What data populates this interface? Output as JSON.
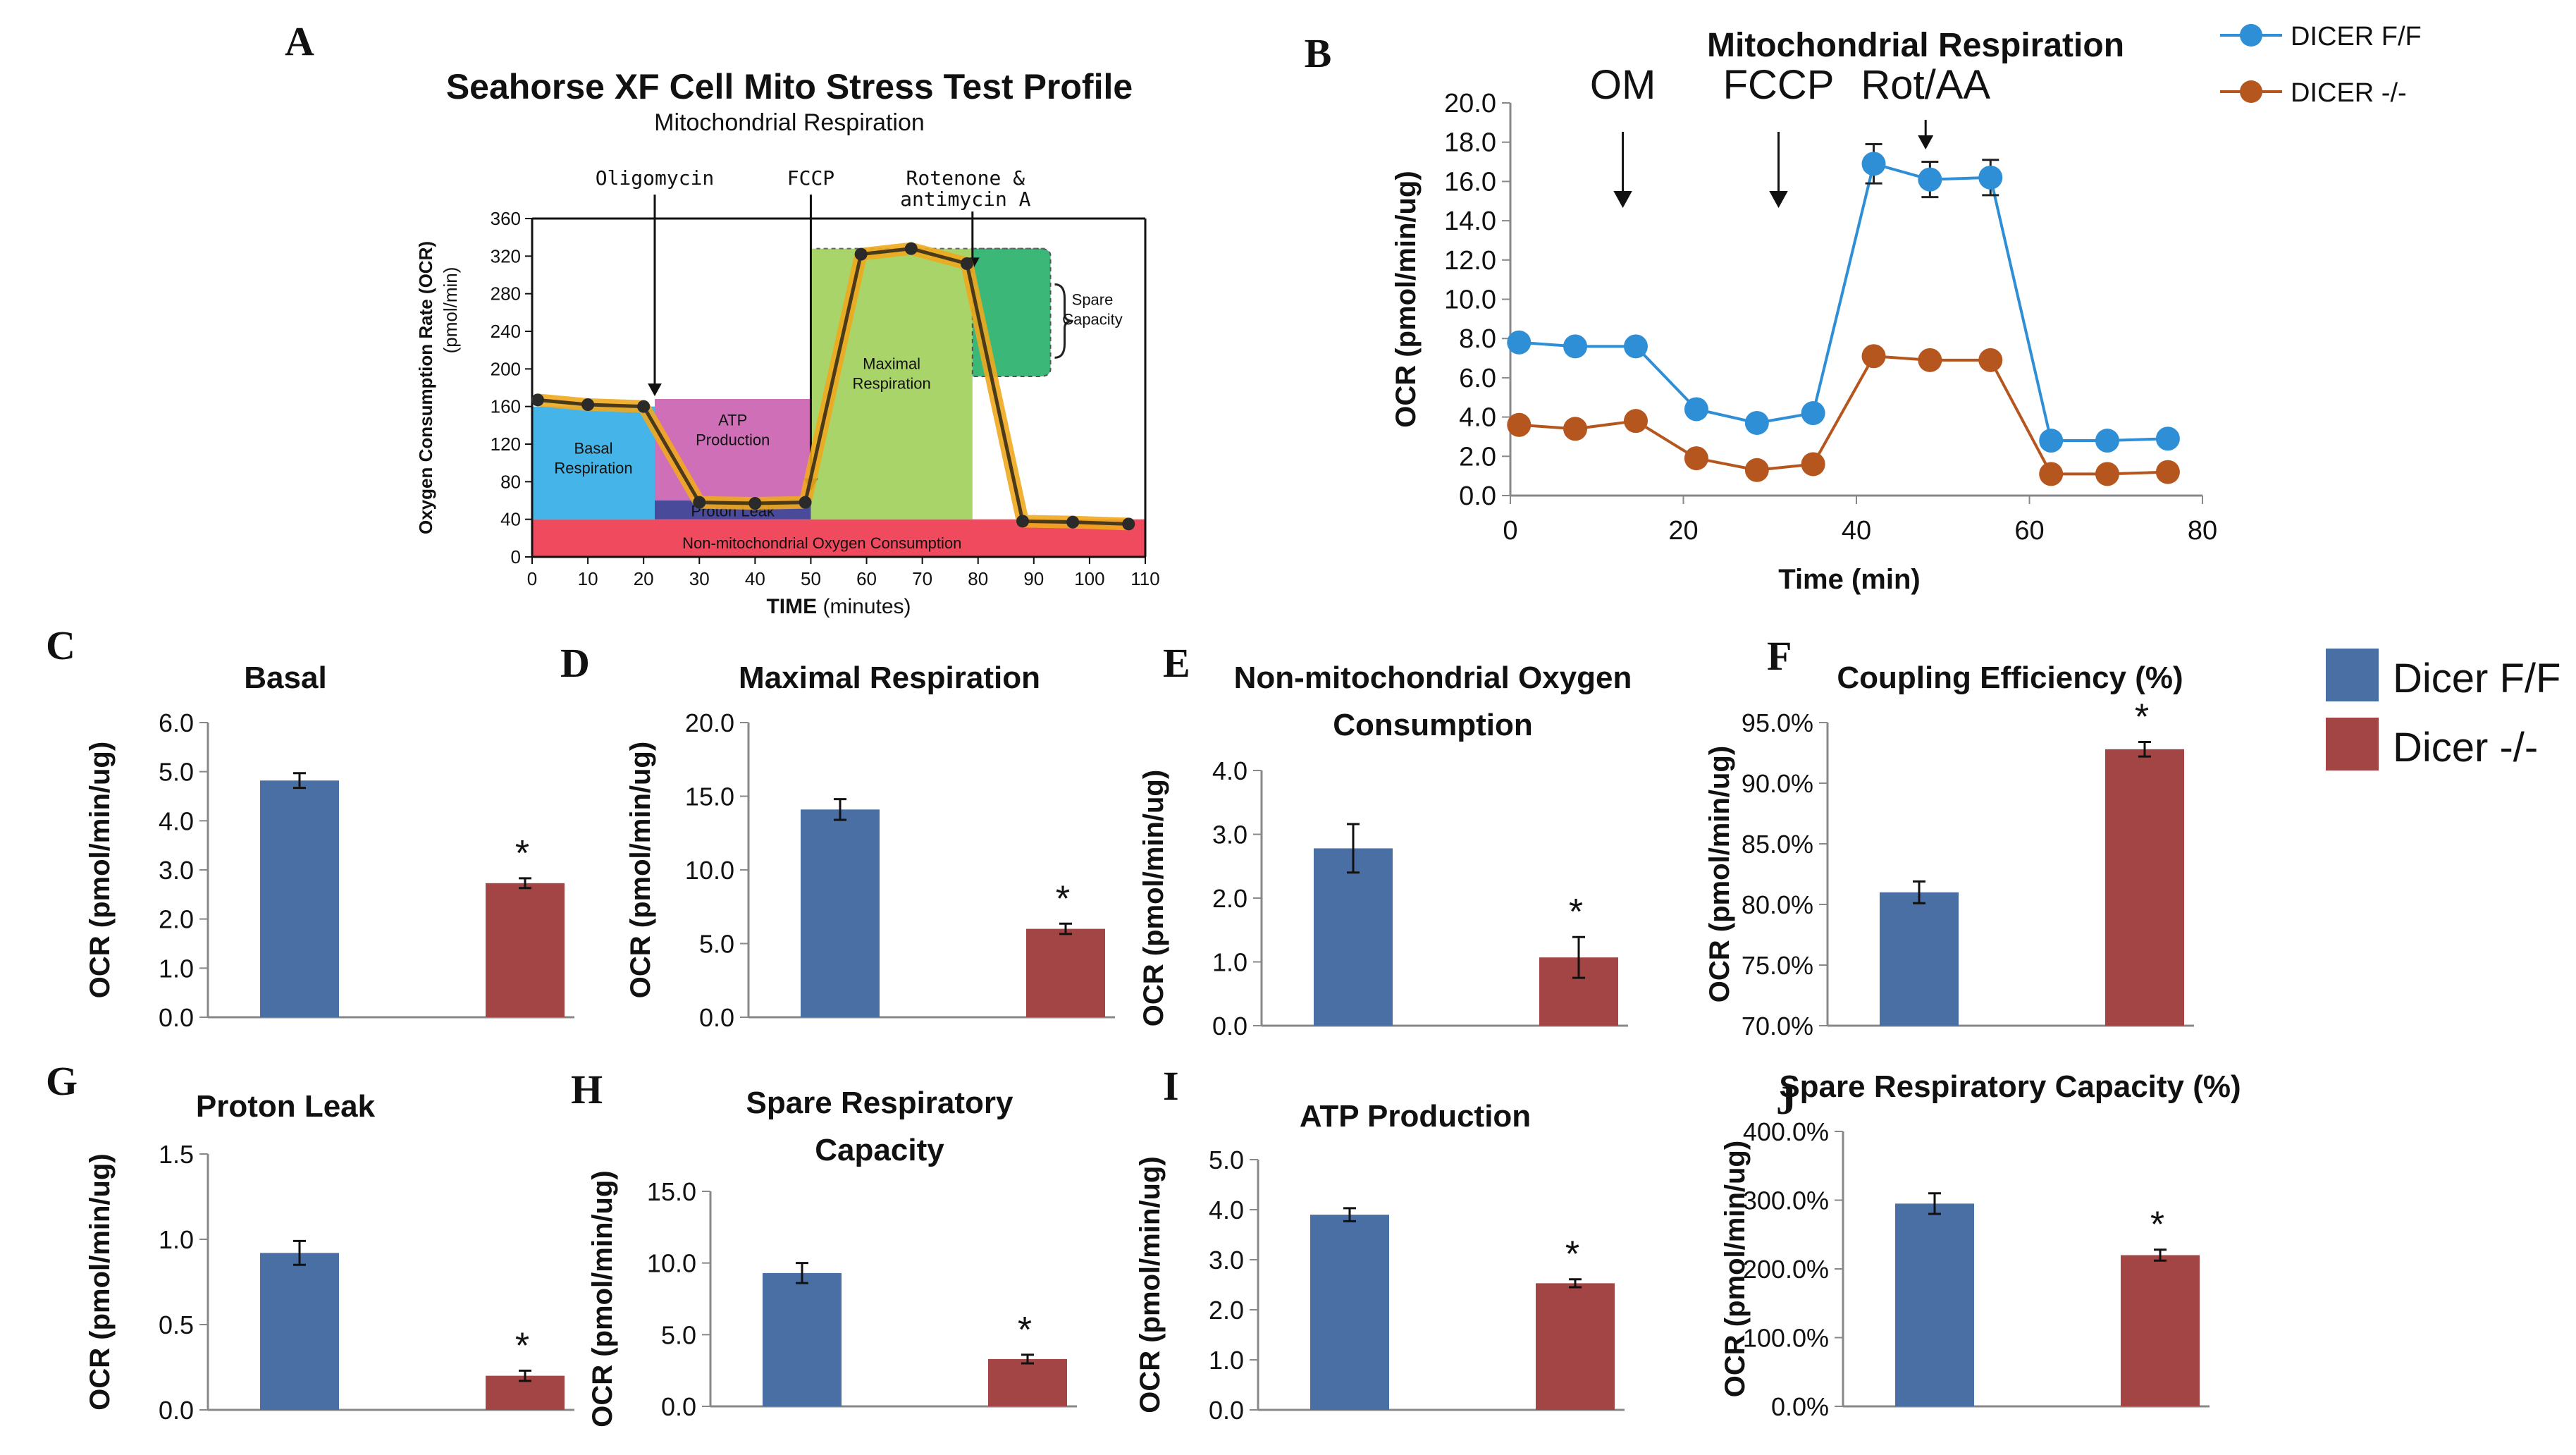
{
  "colors": {
    "wt": "#4a6fa5",
    "ko": "#a34544",
    "b_wt": "#2e8fd6",
    "b_ko": "#b5561f",
    "basal": "#45b4e8",
    "atp": "#cf6fb8",
    "leak": "#4a4a9a",
    "maximal": "#a9d46a",
    "spare": "#3bb878",
    "nonmito": "#ef4a5e",
    "trace": "#f0a81e"
  },
  "legend": {
    "wt": "Dicer F/F",
    "ko": "Dicer -/-"
  },
  "chart_data": [
    {
      "id": "A",
      "type": "line",
      "panel_label": "A",
      "title": "Seahorse XF Cell Mito Stress Test Profile",
      "subtitle": "Mitochondrial Respiration",
      "ylabel": "Oxygen Consumption Rate (OCR)",
      "ylabel2": "(pmol/min)",
      "xlabel_main": "TIME",
      "xlabel_unit": "(minutes)",
      "ylim": [
        0,
        360
      ],
      "xlim": [
        0,
        110
      ],
      "yticks": [
        0,
        40,
        80,
        120,
        160,
        200,
        240,
        280,
        320,
        360
      ],
      "xticks": [
        0,
        10,
        20,
        30,
        40,
        50,
        60,
        70,
        80,
        90,
        100,
        110
      ],
      "injections": [
        {
          "label": "Oligomycin",
          "x": 22
        },
        {
          "label": "FCCP",
          "x": 50
        },
        {
          "label": "Rotenone &",
          "label2": "antimycin A",
          "x": 79
        }
      ],
      "regions": {
        "basal": "Basal",
        "basal2": "Respiration",
        "atp": "ATP",
        "atp2": "Production",
        "leak": "Proton Leak",
        "maximal": "Maximal",
        "maximal2": "Respiration",
        "spare": "Spare",
        "spare2": "Capacity",
        "nonmito": "Non-mitochondrial Oxygen Consumption"
      },
      "x": [
        1,
        10,
        20,
        30,
        40,
        49,
        59,
        68,
        78,
        88,
        97,
        107
      ],
      "y": [
        167,
        162,
        160,
        58,
        57,
        58,
        322,
        328,
        312,
        38,
        37,
        35
      ]
    },
    {
      "id": "B",
      "type": "line",
      "panel_label": "B",
      "title": "Mitochondrial Respiration",
      "xlabel": "Time (min)",
      "ylabel": "OCR (pmol/min/ug)",
      "ylim": [
        0,
        20
      ],
      "xlim": [
        0,
        80
      ],
      "yticks": [
        "0.0",
        "2.0",
        "4.0",
        "6.0",
        "8.0",
        "10.0",
        "12.0",
        "14.0",
        "16.0",
        "18.0",
        "20.0"
      ],
      "xticks": [
        0,
        20,
        40,
        60,
        80
      ],
      "annotations": [
        {
          "label": "OM",
          "x": 13
        },
        {
          "label": "FCCP",
          "x": 31
        },
        {
          "label": "Rot/AA",
          "x": 48
        }
      ],
      "x": [
        1,
        7.5,
        14.5,
        21.5,
        28.5,
        35,
        42,
        48.5,
        55.5,
        62.5,
        69,
        76
      ],
      "series": [
        {
          "name": "DICER F/F",
          "values": [
            7.8,
            7.6,
            7.6,
            4.4,
            3.7,
            4.2,
            16.9,
            16.1,
            16.2,
            2.8,
            2.8,
            2.9
          ],
          "errors": [
            0,
            0,
            0,
            0,
            0,
            0,
            1.0,
            0.9,
            0.9,
            0,
            0,
            0
          ]
        },
        {
          "name": "DICER -/-",
          "values": [
            3.6,
            3.4,
            3.8,
            1.9,
            1.3,
            1.6,
            7.1,
            6.9,
            6.9,
            1.1,
            1.1,
            1.2
          ],
          "errors": [
            0,
            0,
            0,
            0,
            0,
            0,
            0,
            0,
            0,
            0,
            0,
            0
          ]
        }
      ]
    },
    {
      "id": "C",
      "type": "bar",
      "panel_label": "C",
      "title_lines": [
        "Basal"
      ],
      "ylabel": "OCR (pmol/min/ug)",
      "ylim": [
        0,
        6
      ],
      "yticks": [
        "0.0",
        "1.0",
        "2.0",
        "3.0",
        "4.0",
        "5.0",
        "6.0"
      ],
      "values": [
        4.82,
        2.73
      ],
      "errors": [
        0.15,
        0.1
      ],
      "star": "*"
    },
    {
      "id": "D",
      "type": "bar",
      "panel_label": "D",
      "title_lines": [
        "Maximal Respiration"
      ],
      "ylabel": "OCR (pmol/min/ug)",
      "ylim": [
        0,
        20
      ],
      "yticks": [
        "0.0",
        "5.0",
        "10.0",
        "15.0",
        "20.0"
      ],
      "values": [
        14.1,
        6.0
      ],
      "errors": [
        0.7,
        0.35
      ],
      "star": "*"
    },
    {
      "id": "E",
      "type": "bar",
      "panel_label": "E",
      "title_lines": [
        "Non-mitochondrial Oxygen",
        "Consumption"
      ],
      "ylabel": "OCR (pmol/min/ug)",
      "ylim": [
        0,
        4
      ],
      "yticks": [
        "0.0",
        "1.0",
        "2.0",
        "3.0",
        "4.0"
      ],
      "values": [
        2.78,
        1.07
      ],
      "errors": [
        0.38,
        0.32
      ],
      "star": "*"
    },
    {
      "id": "F",
      "type": "bar",
      "panel_label": "F",
      "title_lines": [
        "Coupling Efficiency (%)"
      ],
      "ylabel": "OCR (pmol/min/ug)",
      "ylim": [
        70,
        95
      ],
      "yticks": [
        "70.0%",
        "75.0%",
        "80.0%",
        "85.0%",
        "90.0%",
        "95.0%"
      ],
      "values": [
        81.0,
        92.8
      ],
      "errors": [
        0.9,
        0.6
      ],
      "star": "*"
    },
    {
      "id": "G",
      "type": "bar",
      "panel_label": "G",
      "title_lines": [
        "Proton Leak"
      ],
      "ylabel": "OCR (pmol/min/ug)",
      "ylim": [
        0,
        1.5
      ],
      "yticks": [
        "0.0",
        "0.5",
        "1.0",
        "1.5"
      ],
      "values": [
        0.92,
        0.2
      ],
      "errors": [
        0.07,
        0.03
      ],
      "star": "*"
    },
    {
      "id": "H",
      "type": "bar",
      "panel_label": "H",
      "title_lines": [
        "Spare Respiratory",
        "Capacity"
      ],
      "ylabel": "OCR (pmol/min/ug)",
      "ylim": [
        0,
        15
      ],
      "yticks": [
        "0.0",
        "5.0",
        "10.0",
        "15.0"
      ],
      "values": [
        9.3,
        3.3
      ],
      "errors": [
        0.7,
        0.3
      ],
      "star": "*"
    },
    {
      "id": "I",
      "type": "bar",
      "panel_label": "I",
      "title_lines": [
        "ATP Production"
      ],
      "ylabel": "OCR (pmol/min/ug)",
      "ylim": [
        0,
        5
      ],
      "yticks": [
        "0.0",
        "1.0",
        "2.0",
        "3.0",
        "4.0",
        "5.0"
      ],
      "values": [
        3.9,
        2.53
      ],
      "errors": [
        0.13,
        0.08
      ],
      "star": "*"
    },
    {
      "id": "J",
      "type": "bar",
      "panel_label": "J",
      "title_lines": [
        "Spare Respiratory Capacity (%)"
      ],
      "ylabel": "OCR (pmol/min/ug)",
      "ylim": [
        0,
        400
      ],
      "yticks": [
        "0.0%",
        "100.0%",
        "200.0%",
        "300.0%",
        "400.0%"
      ],
      "values": [
        295,
        220
      ],
      "errors": [
        15,
        8
      ],
      "star": "*"
    }
  ]
}
